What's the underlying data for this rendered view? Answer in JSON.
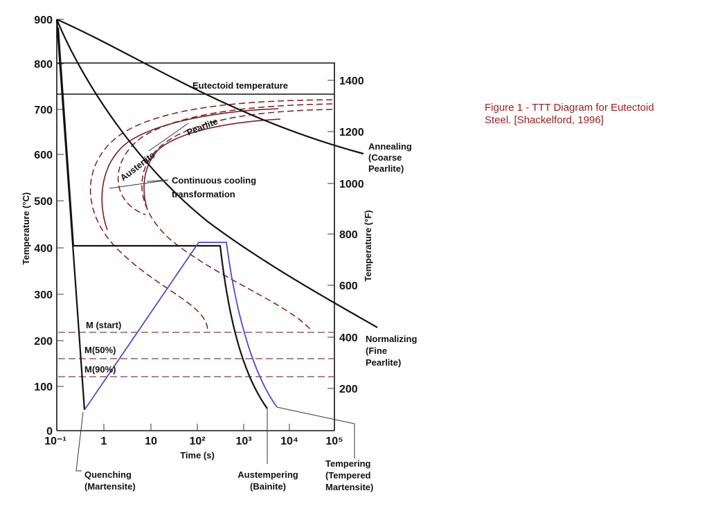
{
  "figure": {
    "caption": [
      "Figure 1 - TTT Diagram for Eutectoid",
      "Steel. [Shackelford, 1996]"
    ],
    "left_axis": {
      "title": "Temperature (°C)",
      "ticks": [
        "900",
        "800",
        "700",
        "600",
        "500",
        "400",
        "300",
        "200",
        "100",
        "0"
      ]
    },
    "right_axis": {
      "title": "Temperature (°F)",
      "ticks": [
        "1400",
        "1200",
        "1000",
        "800",
        "600",
        "400",
        "200"
      ]
    },
    "x_axis": {
      "title": "Time (s)",
      "ticks": [
        "10⁻¹",
        "1",
        "10",
        "10²",
        "10³",
        "10⁴",
        "10⁵"
      ]
    },
    "labels": {
      "eutectoid": "Eutectoid temperature",
      "austenite": "Austenite",
      "pearlite": "Pearlite",
      "ccт": [
        "Continuous cooling",
        "transformation"
      ],
      "m_start": "M (start)",
      "m_50": "M(50%)",
      "m_90": "M(90%)",
      "annealing": [
        "Annealing",
        "(Coarse",
        "Pearlite)"
      ],
      "normalizing": [
        "Normalizing",
        "(Fine",
        "Pearlite)"
      ],
      "quenching": [
        "Quenching",
        "(Martensite)"
      ],
      "austempering": [
        "Austempering",
        "(Bainite)"
      ],
      "tempering": [
        "Tempering",
        "(Tempered",
        "Martensite)"
      ]
    }
  }
}
